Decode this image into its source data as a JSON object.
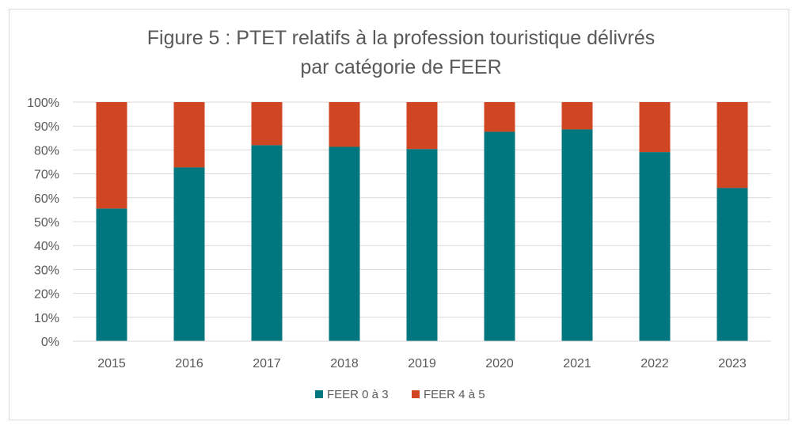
{
  "chart_data": {
    "type": "bar",
    "stacked": true,
    "percent_stacked": true,
    "title": "Figure 5 : PTET relatifs à la profession touristique délivrés par catégorie de FEER",
    "title_lines": [
      "Figure 5 : PTET relatifs à la profession touristique délivrés",
      "par catégorie de FEER"
    ],
    "categories": [
      "2015",
      "2016",
      "2017",
      "2018",
      "2019",
      "2020",
      "2021",
      "2022",
      "2023"
    ],
    "series": [
      {
        "name": "FEER 0 à 3",
        "color": "#00767e",
        "values": [
          55.5,
          72.7,
          82.0,
          81.3,
          80.4,
          87.6,
          88.6,
          79.1,
          64.1
        ]
      },
      {
        "name": "FEER 4 à 5",
        "color": "#d04522",
        "values": [
          44.5,
          27.3,
          18.0,
          18.7,
          19.6,
          12.4,
          11.4,
          20.9,
          35.9
        ]
      }
    ],
    "y_ticks": [
      "0%",
      "10%",
      "20%",
      "30%",
      "40%",
      "50%",
      "60%",
      "70%",
      "80%",
      "90%",
      "100%"
    ],
    "ylim": [
      0,
      100
    ],
    "xlabel": "",
    "ylabel": "",
    "grid": true,
    "legend_position": "bottom"
  }
}
